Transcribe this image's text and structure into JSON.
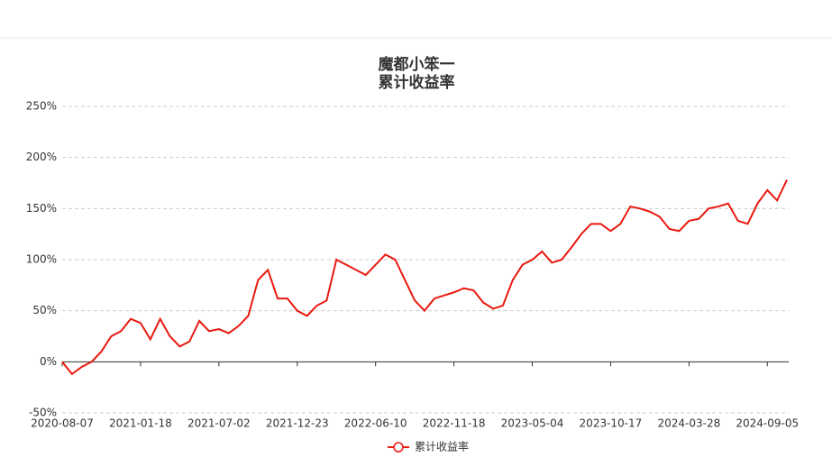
{
  "chart_data": {
    "type": "line",
    "title": "魔都小笨一",
    "subtitle": "累计收益率",
    "categories": [
      "2020-08-07",
      null,
      null,
      null,
      null,
      null,
      null,
      null,
      "2021-01-18",
      null,
      null,
      null,
      null,
      null,
      null,
      null,
      "2021-07-02",
      null,
      null,
      null,
      null,
      null,
      null,
      null,
      "2021-12-23",
      null,
      null,
      null,
      null,
      null,
      null,
      null,
      "2022-06-10",
      null,
      null,
      null,
      null,
      null,
      null,
      null,
      "2022-11-18",
      null,
      null,
      null,
      null,
      null,
      null,
      null,
      "2023-05-04",
      null,
      null,
      null,
      null,
      null,
      null,
      null,
      "2023-10-17",
      null,
      null,
      null,
      null,
      null,
      null,
      null,
      "2024-03-28",
      null,
      null,
      null,
      null,
      null,
      null,
      null,
      "2024-09-05",
      null,
      null
    ],
    "series": [
      {
        "name": "累计收益率",
        "color": "#e8190f",
        "values": [
          0,
          -12,
          -5,
          0,
          10,
          25,
          30,
          42,
          38,
          22,
          42,
          25,
          15,
          20,
          40,
          30,
          32,
          28,
          35,
          45,
          80,
          90,
          62,
          62,
          50,
          45,
          55,
          60,
          100,
          95,
          90,
          85,
          95,
          105,
          100,
          80,
          60,
          50,
          62,
          65,
          68,
          72,
          70,
          58,
          52,
          55,
          80,
          95,
          100,
          108,
          97,
          100,
          112,
          125,
          135,
          135,
          128,
          135,
          152,
          150,
          147,
          142,
          130,
          128,
          138,
          140,
          150,
          152,
          155,
          138,
          135,
          155,
          168,
          158,
          178
        ]
      }
    ],
    "ylim": [
      -50,
      250
    ],
    "yticks": [
      {
        "value": -50,
        "label": "-50%"
      },
      {
        "value": 0,
        "label": "0%"
      },
      {
        "value": 50,
        "label": "50%"
      },
      {
        "value": 100,
        "label": "100%"
      },
      {
        "value": 150,
        "label": "150%"
      },
      {
        "value": 200,
        "label": "200%"
      },
      {
        "value": 250,
        "label": "250%"
      }
    ],
    "grid": true
  }
}
